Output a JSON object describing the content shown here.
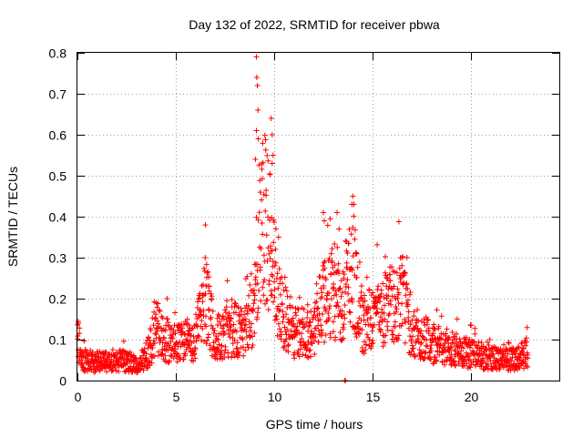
{
  "chart_data": {
    "type": "scatter",
    "title": "Day 132 of 2022, SRMTID for receiver pbwa",
    "xlabel": "GPS time / hours",
    "ylabel": "SRMTID / TECUs",
    "xlim": [
      0,
      24.5
    ],
    "ylim": [
      0,
      0.8
    ],
    "xticks": [
      0,
      5,
      10,
      15,
      20
    ],
    "xtick_labels": [
      "0",
      "5",
      "10",
      "15",
      "20"
    ],
    "yticks": [
      0,
      0.1,
      0.2,
      0.3,
      0.4,
      0.5,
      0.6,
      0.7,
      0.8
    ],
    "ytick_labels": [
      "0",
      "0.1",
      "0.2",
      "0.3",
      "0.4",
      "0.5",
      "0.6",
      "0.7",
      "0.8"
    ],
    "grid": true,
    "marker": "+",
    "color": "#ff0000",
    "x_step_hours": 0.025,
    "x_start_hours": 0.0,
    "x_end_hours": 22.9,
    "profile": [
      [
        0.0,
        0.1
      ],
      [
        0.3,
        0.05
      ],
      [
        1.0,
        0.045
      ],
      [
        2.0,
        0.05
      ],
      [
        3.0,
        0.04
      ],
      [
        3.5,
        0.06
      ],
      [
        4.0,
        0.12
      ],
      [
        4.5,
        0.1
      ],
      [
        5.0,
        0.09
      ],
      [
        6.0,
        0.1
      ],
      [
        6.5,
        0.2
      ],
      [
        7.0,
        0.1
      ],
      [
        8.0,
        0.13
      ],
      [
        8.5,
        0.11
      ],
      [
        9.0,
        0.2
      ],
      [
        9.3,
        0.4
      ],
      [
        9.6,
        0.4
      ],
      [
        10.0,
        0.25
      ],
      [
        10.5,
        0.16
      ],
      [
        11.0,
        0.12
      ],
      [
        12.0,
        0.11
      ],
      [
        12.5,
        0.2
      ],
      [
        13.0,
        0.22
      ],
      [
        13.5,
        0.2
      ],
      [
        14.0,
        0.28
      ],
      [
        14.5,
        0.14
      ],
      [
        15.0,
        0.15
      ],
      [
        15.5,
        0.18
      ],
      [
        16.0,
        0.18
      ],
      [
        16.5,
        0.2
      ],
      [
        17.0,
        0.12
      ],
      [
        18.0,
        0.09
      ],
      [
        19.0,
        0.08
      ],
      [
        20.0,
        0.065
      ],
      [
        21.0,
        0.055
      ],
      [
        22.0,
        0.05
      ],
      [
        22.9,
        0.07
      ]
    ],
    "spikes": [
      {
        "x": 9.1,
        "y": 0.79
      },
      {
        "x": 9.12,
        "y": 0.74
      },
      {
        "x": 9.15,
        "y": 0.72
      },
      {
        "x": 9.18,
        "y": 0.66
      },
      {
        "x": 9.1,
        "y": 0.61
      },
      {
        "x": 9.2,
        "y": 0.59
      },
      {
        "x": 9.85,
        "y": 0.64
      },
      {
        "x": 9.9,
        "y": 0.6
      },
      {
        "x": 9.95,
        "y": 0.55
      },
      {
        "x": 9.9,
        "y": 0.53
      },
      {
        "x": 9.05,
        "y": 0.54
      },
      {
        "x": 12.5,
        "y": 0.41
      },
      {
        "x": 12.55,
        "y": 0.39
      },
      {
        "x": 13.2,
        "y": 0.41
      },
      {
        "x": 13.3,
        "y": 0.37
      },
      {
        "x": 14.0,
        "y": 0.45
      },
      {
        "x": 13.95,
        "y": 0.43
      },
      {
        "x": 14.05,
        "y": 0.43
      },
      {
        "x": 14.2,
        "y": 0.31
      },
      {
        "x": 16.5,
        "y": 0.3
      },
      {
        "x": 6.5,
        "y": 0.3
      },
      {
        "x": 4.0,
        "y": 0.19
      },
      {
        "x": 0.05,
        "y": 0.14
      },
      {
        "x": 13.6,
        "y": 0.0
      },
      {
        "x": 13.62,
        "y": 0.0
      }
    ]
  }
}
